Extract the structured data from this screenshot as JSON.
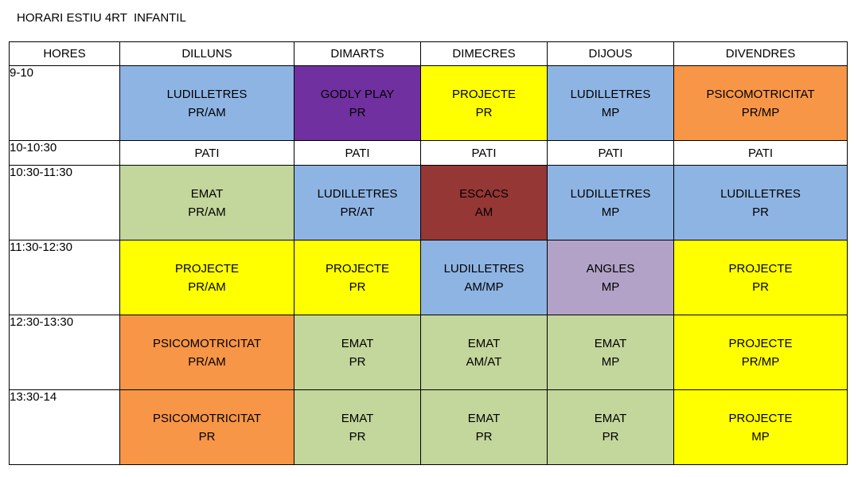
{
  "title": "HORARI ESTIU 4RT  INFANTIL",
  "headers": [
    "HORES",
    "DILLUNS",
    "DIMARTS",
    "DIMECRES",
    "DIJOUS",
    "DIVENDRES"
  ],
  "colors": {
    "blue": "#8eb4e3",
    "purple": "#7030a0",
    "yellow": "#ffff00",
    "orange": "#f79646",
    "green": "#c3d69b",
    "darkred": "#953735",
    "lavender": "#b2a2c7",
    "white": "#ffffff"
  },
  "rows": [
    {
      "hour": "9-10",
      "size": "big",
      "cells": [
        {
          "l1": "LUDILLETRES",
          "l2": "PR/AM",
          "color": "blue"
        },
        {
          "l1": "GODLY PLAY",
          "l2": "PR",
          "color": "purple"
        },
        {
          "l1": "PROJECTE",
          "l2": "PR",
          "color": "yellow"
        },
        {
          "l1": "LUDILLETRES",
          "l2": "MP",
          "color": "blue"
        },
        {
          "l1": "PSICOMOTRICITAT",
          "l2": "PR/MP",
          "color": "orange"
        }
      ]
    },
    {
      "hour": "10-10:30",
      "size": "small",
      "cells": [
        {
          "l1": "PATI",
          "l2": "",
          "color": "white"
        },
        {
          "l1": "PATI",
          "l2": "",
          "color": "white"
        },
        {
          "l1": "PATI",
          "l2": "",
          "color": "white"
        },
        {
          "l1": "PATI",
          "l2": "",
          "color": "white"
        },
        {
          "l1": "PATI",
          "l2": "",
          "color": "white"
        }
      ]
    },
    {
      "hour": "10:30-11:30",
      "size": "big",
      "cells": [
        {
          "l1": "EMAT",
          "l2": "PR/AM",
          "color": "green"
        },
        {
          "l1": "LUDILLETRES",
          "l2": "PR/AT",
          "color": "blue"
        },
        {
          "l1": "ESCACS",
          "l2": "AM",
          "color": "darkred"
        },
        {
          "l1": "LUDILLETRES",
          "l2": "MP",
          "color": "blue"
        },
        {
          "l1": "LUDILLETRES",
          "l2": "PR",
          "color": "blue"
        }
      ]
    },
    {
      "hour": "11:30-12:30",
      "size": "big",
      "cells": [
        {
          "l1": "PROJECTE",
          "l2": "PR/AM",
          "color": "yellow"
        },
        {
          "l1": "PROJECTE",
          "l2": "PR",
          "color": "yellow"
        },
        {
          "l1": "LUDILLETRES",
          "l2": "AM/MP",
          "color": "blue"
        },
        {
          "l1": "ANGLES",
          "l2": "MP",
          "color": "lavender"
        },
        {
          "l1": "PROJECTE",
          "l2": "PR",
          "color": "yellow"
        }
      ]
    },
    {
      "hour": "12:30-13:30",
      "size": "big",
      "cells": [
        {
          "l1": "PSICOMOTRICITAT",
          "l2": "PR/AM",
          "color": "orange"
        },
        {
          "l1": "EMAT",
          "l2": "PR",
          "color": "green"
        },
        {
          "l1": "EMAT",
          "l2": "AM/AT",
          "color": "green"
        },
        {
          "l1": "EMAT",
          "l2": "MP",
          "color": "green"
        },
        {
          "l1": "PROJECTE",
          "l2": "PR/MP",
          "color": "yellow"
        }
      ]
    },
    {
      "hour": "13:30-14",
      "size": "big",
      "cells": [
        {
          "l1": "PSICOMOTRICITAT",
          "l2": "PR",
          "color": "orange"
        },
        {
          "l1": "EMAT",
          "l2": "PR",
          "color": "green"
        },
        {
          "l1": "EMAT",
          "l2": "PR",
          "color": "green"
        },
        {
          "l1": "EMAT",
          "l2": "PR",
          "color": "green"
        },
        {
          "l1": "PROJECTE",
          "l2": "MP",
          "color": "yellow"
        }
      ]
    }
  ]
}
